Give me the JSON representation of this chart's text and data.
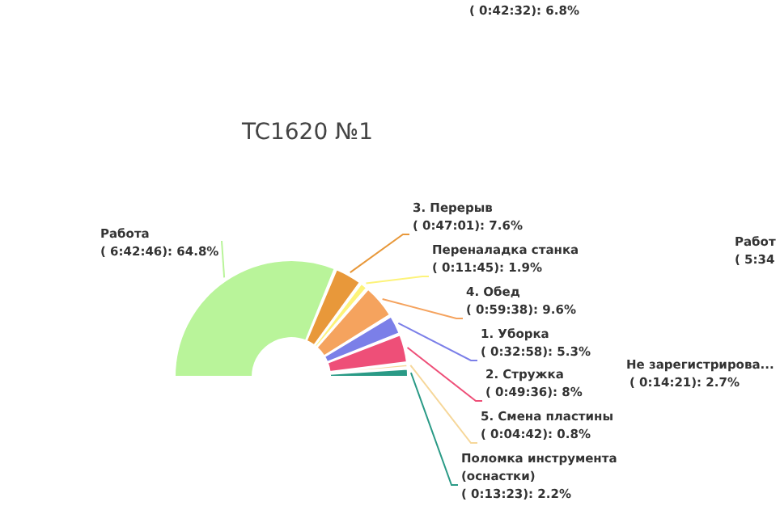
{
  "chart_data": {
    "type": "donut",
    "title": "TC1620 №1",
    "categories": [
      "Работа",
      "3. Перерыв",
      "Переналадка станка",
      "4. Обед",
      "1. Уборка",
      "2. Стружка",
      "5. Смена пластины",
      "Поломка инструмента (оснастки)"
    ],
    "values": [
      64.8,
      7.6,
      1.9,
      9.6,
      5.3,
      8,
      0.8,
      2.2
    ],
    "value_labels": [
      "( 6:42:46): 64.8%",
      "( 0:47:01): 7.6%",
      "( 0:11:45): 1.9%",
      "( 0:59:38): 9.6%",
      "( 0:32:58): 5.3%",
      "( 0:49:36): 8%",
      "( 0:04:42): 0.8%",
      "( 0:13:23): 2.2%"
    ],
    "colors": [
      "#b9f49a",
      "#e8983a",
      "#fdf37a",
      "#f5a35e",
      "#7b7fe8",
      "#ee4f78",
      "#f6d79a",
      "#2a9a86"
    ],
    "annotations": [
      "( 0:42:32): 6.8%",
      "Не зарегистрирова...",
      "( 0:14:21): 2.7%",
      "Работ",
      "( 5:34"
    ],
    "legend": false
  }
}
